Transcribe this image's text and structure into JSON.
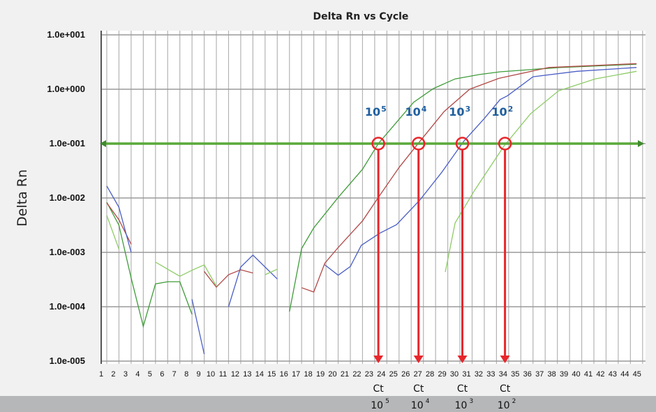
{
  "chart_data": {
    "type": "line",
    "title": "Delta Rn  vs  Cycle",
    "xlabel": "",
    "ylabel": "Delta Rn",
    "yscale": "log",
    "xlim": [
      1,
      45
    ],
    "ylim": [
      1e-05,
      10
    ],
    "grid": true,
    "y_ticks": [
      {
        "log10": 1,
        "label": "1.0e+001"
      },
      {
        "log10": 0,
        "label": "1.0e+000"
      },
      {
        "log10": -1,
        "label": "1.0e-001"
      },
      {
        "log10": -2,
        "label": "1.0e-002"
      },
      {
        "log10": -3,
        "label": "1.0e-003"
      },
      {
        "log10": -4,
        "label": "1.0e-004"
      },
      {
        "log10": -5,
        "label": "1.0e-005"
      }
    ],
    "x_ticks": [
      "1",
      "2",
      "3",
      "4",
      "5",
      "6",
      "7",
      "8",
      "9",
      "10",
      "11",
      "12",
      "13",
      "14",
      "15",
      "16",
      "17",
      "18",
      "19",
      "20",
      "21",
      "22",
      "23",
      "24",
      "25",
      "26",
      "27",
      "28",
      "29",
      "30",
      "31",
      "32",
      "33",
      "34",
      "35",
      "36",
      "37",
      "38",
      "39",
      "40",
      "41",
      "42",
      "43",
      "44",
      "45"
    ],
    "threshold": {
      "value": 0.1,
      "color": "#5aa83a"
    },
    "series": [
      {
        "name": "10^5",
        "label_base": "10",
        "label_exp": "5",
        "color": "#3f9c3a",
        "segments": [
          [
            [
              1,
              -2.08
            ],
            [
              2,
              -2.5
            ],
            [
              3,
              -3.47
            ],
            [
              4,
              -4.36
            ],
            [
              5,
              -3.58
            ],
            [
              6,
              -3.54
            ],
            [
              7,
              -3.54
            ],
            [
              8,
              -4.14
            ]
          ],
          [
            [
              16,
              -4.09
            ],
            [
              17,
              -2.93
            ],
            [
              18,
              -2.55
            ],
            [
              20,
              -1.99
            ],
            [
              22,
              -1.47
            ],
            [
              23.3,
              -1.0
            ],
            [
              24.9,
              -0.58
            ],
            [
              26.2,
              -0.24
            ],
            [
              27.8,
              0.01
            ],
            [
              29.6,
              0.19
            ],
            [
              31.6,
              0.27
            ],
            [
              33.3,
              0.32
            ],
            [
              38.2,
              0.4
            ],
            [
              44.5,
              0.46
            ]
          ]
        ]
      },
      {
        "name": "10^4",
        "label_base": "10",
        "label_exp": "4",
        "color": "#b24a48",
        "segments": [
          [
            [
              1,
              -2.09
            ],
            [
              2,
              -2.4
            ],
            [
              3,
              -2.85
            ]
          ],
          [
            [
              9,
              -3.35
            ],
            [
              10,
              -3.64
            ],
            [
              11,
              -3.41
            ],
            [
              12,
              -3.32
            ],
            [
              13,
              -3.38
            ]
          ],
          [
            [
              17,
              -3.65
            ],
            [
              18,
              -3.73
            ],
            [
              18.9,
              -3.2
            ],
            [
              20,
              -2.91
            ],
            [
              22,
              -2.42
            ],
            [
              23.3,
              -1.99
            ],
            [
              25,
              -1.44
            ],
            [
              26.6,
              -0.99
            ],
            [
              28.7,
              -0.41
            ],
            [
              30.8,
              0.0
            ],
            [
              33.2,
              0.2
            ],
            [
              37.3,
              0.4
            ],
            [
              44.5,
              0.47
            ]
          ]
        ]
      },
      {
        "name": "10^3",
        "label_base": "10",
        "label_exp": "3",
        "color": "#4a5ec6",
        "segments": [
          [
            [
              1,
              -1.78
            ],
            [
              2,
              -2.17
            ],
            [
              3,
              -3.0
            ]
          ],
          [
            [
              8,
              -3.86
            ],
            [
              9,
              -4.87
            ]
          ],
          [
            [
              11,
              -4.0
            ],
            [
              12,
              -3.27
            ],
            [
              13,
              -3.05
            ],
            [
              14,
              -3.27
            ],
            [
              15,
              -3.49
            ]
          ],
          [
            [
              18.9,
              -3.23
            ],
            [
              20,
              -3.42
            ],
            [
              21,
              -3.26
            ],
            [
              21.9,
              -2.87
            ],
            [
              23.4,
              -2.65
            ],
            [
              24.8,
              -2.49
            ],
            [
              26.7,
              -2.04
            ],
            [
              28.5,
              -1.53
            ],
            [
              30.3,
              -0.96
            ],
            [
              32,
              -0.54
            ],
            [
              33.3,
              -0.19
            ],
            [
              33.9,
              -0.12
            ],
            [
              36,
              0.23
            ],
            [
              39.6,
              0.33
            ],
            [
              44.5,
              0.4
            ]
          ]
        ]
      },
      {
        "name": "10^2",
        "label_base": "10",
        "label_exp": "2",
        "color": "#8dcc66",
        "segments": [
          [
            [
              1,
              -2.32
            ],
            [
              2,
              -2.94
            ]
          ],
          [
            [
              5,
              -3.18
            ],
            [
              7,
              -3.44
            ],
            [
              8,
              -3.33
            ],
            [
              9,
              -3.23
            ],
            [
              10,
              -3.62
            ]
          ],
          [
            [
              14,
              -3.41
            ],
            [
              15,
              -3.31
            ]
          ],
          [
            [
              28.8,
              -3.36
            ],
            [
              29.6,
              -2.46
            ],
            [
              31.2,
              -1.86
            ],
            [
              33.6,
              -1.05
            ],
            [
              35.8,
              -0.45
            ],
            [
              38.1,
              -0.03
            ],
            [
              41.1,
              0.19
            ],
            [
              44.5,
              0.33
            ]
          ]
        ]
      }
    ],
    "ct_markers": [
      {
        "series": "10^5",
        "ct": 23.3,
        "label": "Ct",
        "base": "10",
        "exp": "5"
      },
      {
        "series": "10^4",
        "ct": 26.6,
        "label": "Ct",
        "base": "10",
        "exp": "4"
      },
      {
        "series": "10^3",
        "ct": 30.2,
        "label": "Ct",
        "base": "10",
        "exp": "3"
      },
      {
        "series": "10^2",
        "ct": 33.7,
        "label": "Ct",
        "base": "10",
        "exp": "2"
      }
    ],
    "marker_color": "#e8262b",
    "label_color": "#1f5f9e"
  }
}
